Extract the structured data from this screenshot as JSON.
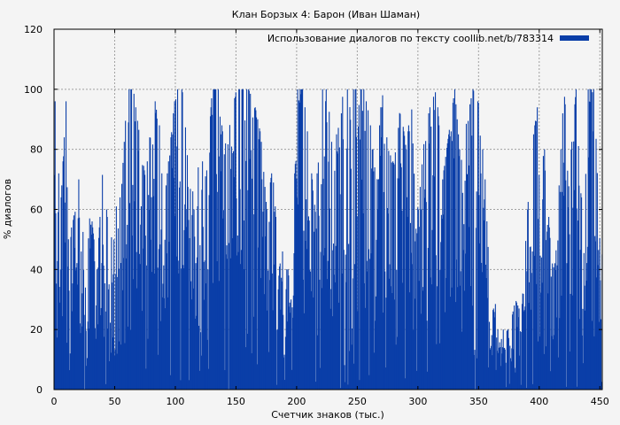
{
  "chart_data": {
    "type": "bar",
    "title": "Клан Борзых 4: Барон (Иван Шаман)",
    "xlabel": "Счетчик знаков (тыс.)",
    "ylabel": "% диалогов",
    "legend": {
      "label": "Использование диалогов по тексту coollib.net/b/783314",
      "placement": "top-right"
    },
    "color": "#0a3ea8",
    "grid": true,
    "xlim": [
      0,
      452
    ],
    "ylim": [
      0,
      120
    ],
    "xticks": [
      0,
      50,
      100,
      150,
      200,
      250,
      300,
      350,
      400,
      450
    ],
    "yticks": [
      0,
      20,
      40,
      60,
      80,
      100,
      120
    ],
    "profile": {
      "description_of_values": "approximate upper envelope of dialogue percentage per ~10k-character segment",
      "x": [
        0,
        5,
        10,
        15,
        20,
        25,
        30,
        35,
        40,
        45,
        50,
        55,
        60,
        65,
        70,
        75,
        80,
        85,
        90,
        95,
        100,
        105,
        110,
        115,
        120,
        125,
        130,
        135,
        140,
        145,
        150,
        155,
        160,
        165,
        170,
        175,
        180,
        185,
        190,
        195,
        200,
        205,
        210,
        215,
        220,
        225,
        230,
        235,
        240,
        245,
        250,
        255,
        260,
        265,
        270,
        275,
        280,
        285,
        290,
        295,
        300,
        305,
        310,
        315,
        320,
        325,
        330,
        335,
        340,
        345,
        350,
        355,
        360,
        365,
        370,
        375,
        380,
        385,
        390,
        395,
        400,
        405,
        410,
        415,
        420,
        425,
        430,
        435,
        440,
        445,
        450
      ],
      "y": [
        100,
        60,
        100,
        55,
        70,
        45,
        60,
        40,
        75,
        50,
        60,
        65,
        100,
        100,
        85,
        70,
        90,
        100,
        60,
        80,
        100,
        100,
        90,
        60,
        80,
        70,
        100,
        100,
        80,
        90,
        100,
        100,
        100,
        95,
        85,
        60,
        75,
        40,
        50,
        30,
        100,
        100,
        80,
        60,
        100,
        100,
        75,
        95,
        100,
        100,
        100,
        100,
        90,
        70,
        100,
        80,
        75,
        95,
        80,
        100,
        60,
        85,
        95,
        100,
        70,
        85,
        100,
        75,
        90,
        100,
        95,
        70,
        25,
        30,
        20,
        20,
        30,
        25,
        60,
        85,
        100,
        75,
        40,
        60,
        100,
        75,
        100,
        60,
        100,
        100,
        45
      ]
    }
  }
}
